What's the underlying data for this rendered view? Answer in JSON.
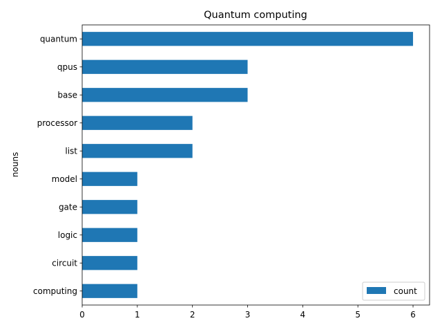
{
  "chart_data": {
    "type": "bar",
    "orientation": "horizontal",
    "title": "Quantum computing",
    "xlabel": "",
    "ylabel": "nouns",
    "categories": [
      "quantum",
      "qpus",
      "base",
      "processor",
      "list",
      "model",
      "gate",
      "logic",
      "circuit",
      "computing"
    ],
    "series": [
      {
        "name": "count",
        "values": [
          6,
          3,
          3,
          2,
          2,
          1,
          1,
          1,
          1,
          1
        ],
        "color": "#1f77b4"
      }
    ],
    "xlim": [
      0,
      6.3
    ],
    "xticks": [
      0,
      1,
      2,
      3,
      4,
      5,
      6
    ],
    "grid": false,
    "legend_position": "bottom-right"
  }
}
